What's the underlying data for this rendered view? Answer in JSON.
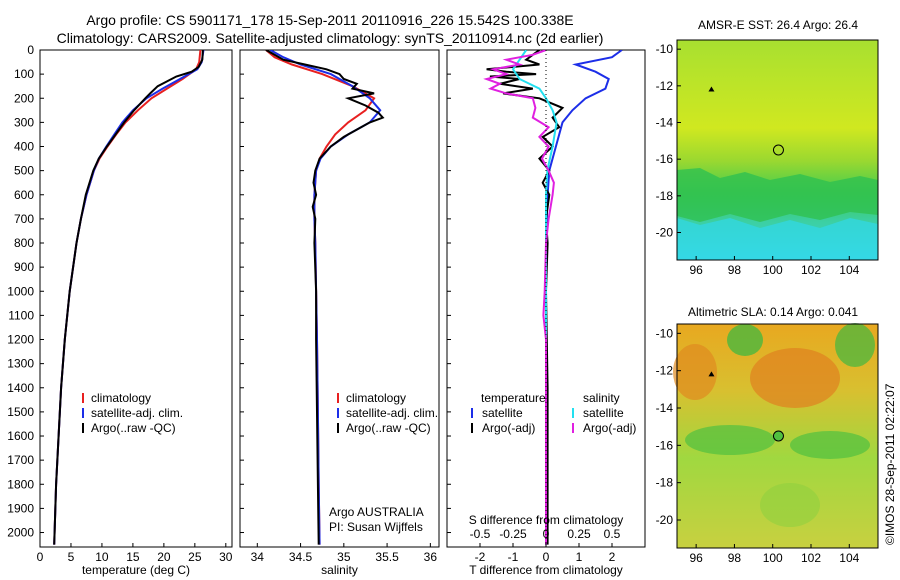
{
  "header": {
    "line1": "Argo profile: CS 5901171_178 15-Sep-2011 20110916_226 15.542S 100.338E",
    "line2": "Climatology: CARS2009. Satellite-adjusted climatology: synTS_20110914.nc (2d earlier)"
  },
  "colors": {
    "clim": "#e82020",
    "sat": "#1c2ee8",
    "argo": "#000000",
    "cyan": "#22e0f0",
    "magenta": "#e020e0"
  },
  "chart_data": [
    {
      "type": "line",
      "id": "temperature",
      "xlabel": "temperature (deg C)",
      "ylabel": "",
      "xlim": [
        0,
        31
      ],
      "ylim": [
        2060,
        0
      ],
      "xticks": [
        0,
        5,
        10,
        15,
        20,
        25,
        30
      ],
      "yticks": [
        0,
        100,
        200,
        300,
        400,
        500,
        600,
        700,
        800,
        900,
        1000,
        1100,
        1200,
        1300,
        1400,
        1500,
        1600,
        1700,
        1800,
        1900,
        2000
      ],
      "legend": [
        "climatology",
        "satellite-adj. clim.",
        "Argo(..raw -QC)"
      ],
      "series": [
        {
          "name": "climatology",
          "depth": [
            0,
            50,
            80,
            120,
            160,
            200,
            250,
            300,
            350,
            400,
            450,
            500,
            600,
            700,
            800,
            1000,
            1200,
            1400,
            1600,
            1800,
            2050
          ],
          "values": [
            25.9,
            25.7,
            25.2,
            23.0,
            20.5,
            18.0,
            15.8,
            13.8,
            12.3,
            10.9,
            9.6,
            8.7,
            7.5,
            6.6,
            5.9,
            4.8,
            4.0,
            3.4,
            3.0,
            2.6,
            2.3
          ]
        },
        {
          "name": "satellite-adj. clim.",
          "depth": [
            0,
            50,
            80,
            120,
            160,
            200,
            250,
            300,
            350,
            400,
            450,
            500,
            600,
            700,
            800,
            1000,
            1200,
            1400,
            1600,
            1800,
            2050
          ],
          "values": [
            26.4,
            26.1,
            25.4,
            22.6,
            19.8,
            17.2,
            15.0,
            13.3,
            12.0,
            10.7,
            9.5,
            8.7,
            7.5,
            6.6,
            5.9,
            4.8,
            4.0,
            3.4,
            3.0,
            2.6,
            2.3
          ]
        },
        {
          "name": "Argo(..raw -QC)",
          "depth": [
            0,
            40,
            70,
            90,
            110,
            130,
            150,
            180,
            200,
            250,
            300,
            350,
            400,
            450,
            500,
            600,
            700,
            800,
            1000,
            1200,
            1400,
            1600,
            1800,
            2050
          ],
          "values": [
            26.3,
            26.2,
            25.6,
            24.5,
            22.0,
            20.5,
            19.0,
            17.8,
            17.0,
            15.2,
            13.6,
            12.2,
            10.8,
            9.5,
            8.6,
            7.4,
            6.6,
            5.9,
            4.8,
            4.0,
            3.4,
            3.0,
            2.6,
            2.3
          ]
        }
      ]
    },
    {
      "type": "line",
      "id": "salinity",
      "xlabel": "salinity",
      "ylabel": "",
      "xlim": [
        33.8,
        36.1
      ],
      "ylim": [
        2060,
        0
      ],
      "xticks": [
        34,
        34.5,
        35,
        35.5,
        36
      ],
      "legend": [
        "climatology",
        "satellite-adj. clim.",
        "Argo(..raw -QC)"
      ],
      "annotations": [
        "Argo AUSTRALIA",
        "PI: Susan Wijffels"
      ],
      "series": [
        {
          "name": "climatology",
          "depth": [
            0,
            30,
            60,
            100,
            150,
            200,
            250,
            300,
            350,
            400,
            450,
            500,
            600,
            700,
            800,
            1000,
            1200,
            1500,
            1800,
            2050
          ],
          "values": [
            34.1,
            34.2,
            34.4,
            34.75,
            35.1,
            35.35,
            35.25,
            35.05,
            34.9,
            34.8,
            34.72,
            34.68,
            34.66,
            34.66,
            34.67,
            34.68,
            34.69,
            34.7,
            34.71,
            34.72
          ]
        },
        {
          "name": "satellite-adj. clim.",
          "depth": [
            0,
            30,
            60,
            100,
            150,
            200,
            250,
            300,
            350,
            400,
            450,
            500,
            600,
            700,
            800,
            1000,
            1200,
            1500,
            1800,
            2050
          ],
          "values": [
            34.15,
            34.3,
            34.5,
            34.85,
            35.1,
            35.3,
            35.42,
            35.3,
            35.05,
            34.85,
            34.73,
            34.68,
            34.66,
            34.66,
            34.67,
            34.68,
            34.69,
            34.7,
            34.71,
            34.72
          ]
        },
        {
          "name": "Argo(..raw -QC)",
          "depth": [
            0,
            20,
            40,
            60,
            80,
            100,
            120,
            140,
            160,
            180,
            200,
            230,
            260,
            280,
            300,
            330,
            360,
            400,
            450,
            500,
            550,
            600,
            650,
            700,
            800,
            1000,
            1200,
            1500,
            1800,
            2050
          ],
          "values": [
            34.1,
            34.2,
            34.3,
            34.55,
            34.8,
            34.95,
            35.0,
            35.15,
            35.1,
            35.35,
            35.05,
            35.25,
            35.4,
            35.45,
            35.3,
            35.15,
            35.0,
            34.85,
            34.72,
            34.67,
            34.65,
            34.68,
            34.64,
            34.67,
            34.66,
            34.68,
            34.68,
            34.69,
            34.7,
            34.71
          ]
        }
      ]
    },
    {
      "type": "line",
      "id": "differences",
      "xlabel": "T difference from climatology",
      "xlabel2": "S difference from climatology",
      "xlim": [
        -3,
        3
      ],
      "ylim": [
        2060,
        0
      ],
      "xticks": [
        -2,
        -1,
        0,
        1,
        2
      ],
      "xticks_labels": [
        "-2",
        "-1",
        "0",
        "1",
        "2"
      ],
      "s_xticks": [
        -0.5,
        -0.25,
        0,
        0.25,
        0.5
      ],
      "s_xticks_labels": [
        "-0.5",
        "-0.25",
        "0",
        "0.25",
        "0.5"
      ],
      "legend_temperature_title": "temperature",
      "legend_salinity_title": "salinity",
      "legend": [
        "satellite",
        "Argo(-adj)",
        "satellite",
        "Argo(-adj)"
      ],
      "series": [
        {
          "name": "T satellite",
          "depth": [
            0,
            30,
            60,
            90,
            120,
            160,
            200,
            250,
            300,
            400,
            500,
            600,
            800,
            1000,
            1400,
            1800,
            2050
          ],
          "values": [
            2.3,
            2.0,
            0.9,
            1.5,
            1.9,
            1.8,
            1.2,
            0.8,
            0.5,
            0.3,
            0.1,
            0.05,
            0.0,
            0.0,
            0.0,
            0.0,
            0.0
          ]
        },
        {
          "name": "T Argo(-adj)",
          "depth": [
            0,
            20,
            40,
            60,
            80,
            90,
            100,
            110,
            120,
            140,
            160,
            180,
            200,
            240,
            280,
            320,
            360,
            400,
            450,
            500,
            550,
            600,
            700,
            800,
            1000,
            1400,
            1800,
            2050
          ],
          "values": [
            -0.2,
            -0.4,
            -0.6,
            -0.2,
            -1.8,
            -1.2,
            -0.3,
            -1.7,
            -0.8,
            -1.4,
            -0.4,
            -1.3,
            -0.2,
            0.5,
            0.2,
            0.4,
            -0.1,
            0.2,
            -0.2,
            0.1,
            -0.1,
            0.1,
            0.0,
            0.05,
            0.0,
            0.05,
            0.05,
            0.05
          ]
        },
        {
          "name": "S satellite",
          "depth": [
            0,
            40,
            80,
            120,
            160,
            200,
            250,
            300,
            400,
            500,
            600,
            800,
            1000,
            1400,
            1800,
            2050
          ],
          "values": [
            -0.15,
            -0.2,
            -0.25,
            -0.2,
            -0.05,
            0.0,
            0.05,
            0.08,
            0.05,
            0.01,
            0.0,
            0.0,
            0.0,
            0.0,
            0.0,
            0.0
          ]
        },
        {
          "name": "S Argo(-adj)",
          "depth": [
            0,
            20,
            40,
            60,
            80,
            100,
            120,
            140,
            160,
            180,
            200,
            240,
            280,
            320,
            360,
            400,
            450,
            500,
            550,
            600,
            700,
            800,
            1000,
            1100,
            1200,
            1400,
            1800,
            2050
          ],
          "values": [
            0.0,
            -0.1,
            -0.3,
            -0.2,
            -0.4,
            -0.3,
            -0.45,
            -0.35,
            -0.42,
            -0.3,
            -0.1,
            -0.08,
            -0.1,
            0.02,
            -0.05,
            0.02,
            -0.03,
            0.02,
            0.06,
            0.05,
            0.02,
            0.0,
            -0.01,
            -0.02,
            0.0,
            0.0,
            0.0,
            0.0
          ]
        }
      ]
    },
    {
      "type": "heatmap",
      "id": "sst-map",
      "title": "AMSR-E SST: 26.4 Argo: 26.4",
      "xlim": [
        95,
        105.5
      ],
      "ylim": [
        -21.5,
        -9.5
      ],
      "xticks": [
        96,
        98,
        100,
        102,
        104
      ],
      "yticks": [
        -10,
        -12,
        -14,
        -16,
        -18,
        -20
      ],
      "marker_circle": {
        "lon": 100.3,
        "lat": -15.5
      },
      "marker_triangle": {
        "lon": 96.8,
        "lat": -12.2
      }
    },
    {
      "type": "heatmap",
      "id": "sla-map",
      "title": "Altimetric SLA: 0.14 Argo: 0.041",
      "xlim": [
        95,
        105.5
      ],
      "ylim": [
        -21.5,
        -9.5
      ],
      "xticks": [
        96,
        98,
        100,
        102,
        104
      ],
      "yticks": [
        -10,
        -12,
        -14,
        -16,
        -18,
        -20
      ],
      "marker_circle": {
        "lon": 100.3,
        "lat": -15.5
      },
      "marker_triangle": {
        "lon": 96.8,
        "lat": -12.2
      }
    }
  ],
  "side_label": "©IMOS 28-Sep-2011 02:22:07"
}
